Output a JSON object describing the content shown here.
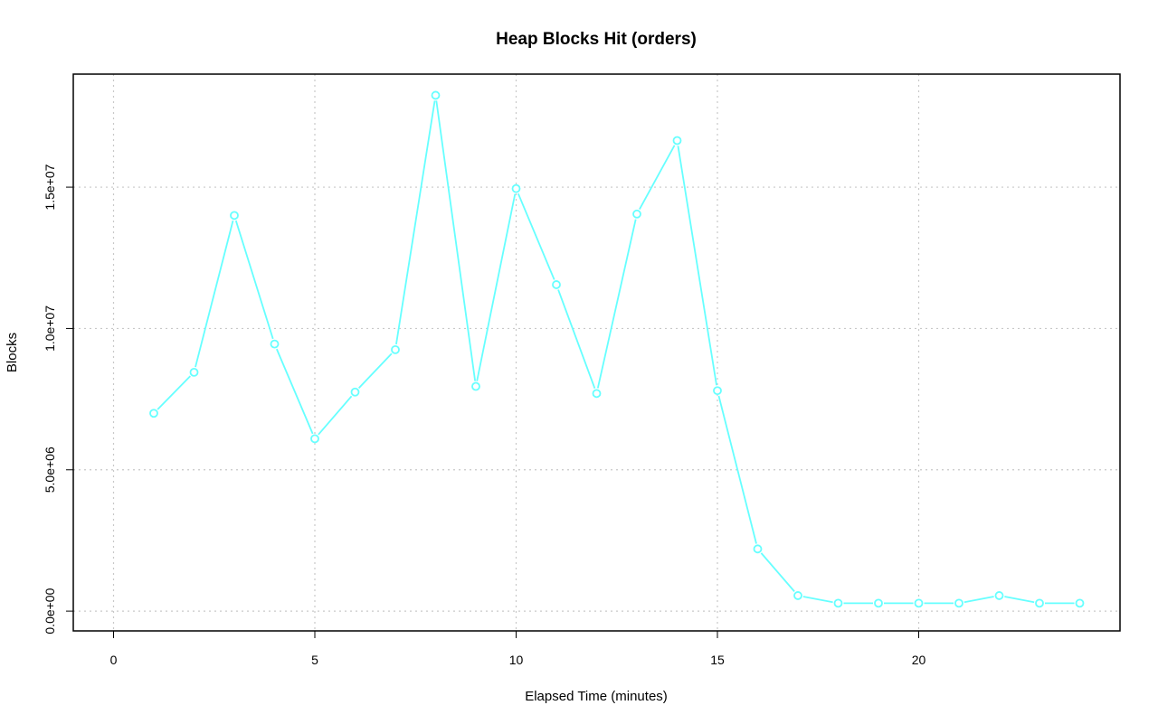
{
  "chart_data": {
    "type": "line",
    "title": "Heap Blocks Hit (orders)",
    "xlabel": "Elapsed Time (minutes)",
    "ylabel": "Blocks",
    "xlim": [
      -1,
      25
    ],
    "ylim": [
      -700000,
      19000000
    ],
    "x_ticks": [
      0,
      5,
      10,
      15,
      20
    ],
    "x_tick_labels": [
      "0",
      "5",
      "10",
      "15",
      "20"
    ],
    "y_ticks": [
      0,
      5000000,
      10000000,
      15000000
    ],
    "y_tick_labels": [
      "0.0e+00",
      "5.0e+06",
      "1.0e+07",
      "1.5e+07"
    ],
    "grid": true,
    "series": [
      {
        "color": "#66ffff",
        "marker": "circle",
        "x": [
          1,
          2,
          3,
          4,
          5,
          6,
          7,
          8,
          9,
          10,
          11,
          12,
          13,
          14,
          15,
          16,
          17,
          18,
          19,
          20,
          21,
          22,
          23,
          24
        ],
        "values": [
          7000000,
          8450000,
          14000000,
          9450000,
          6100000,
          7750000,
          9250000,
          18250000,
          7950000,
          14950000,
          11550000,
          7700000,
          14050000,
          16650000,
          7800000,
          2200000,
          550000,
          280000,
          280000,
          280000,
          280000,
          550000,
          280000,
          280000
        ]
      }
    ]
  }
}
